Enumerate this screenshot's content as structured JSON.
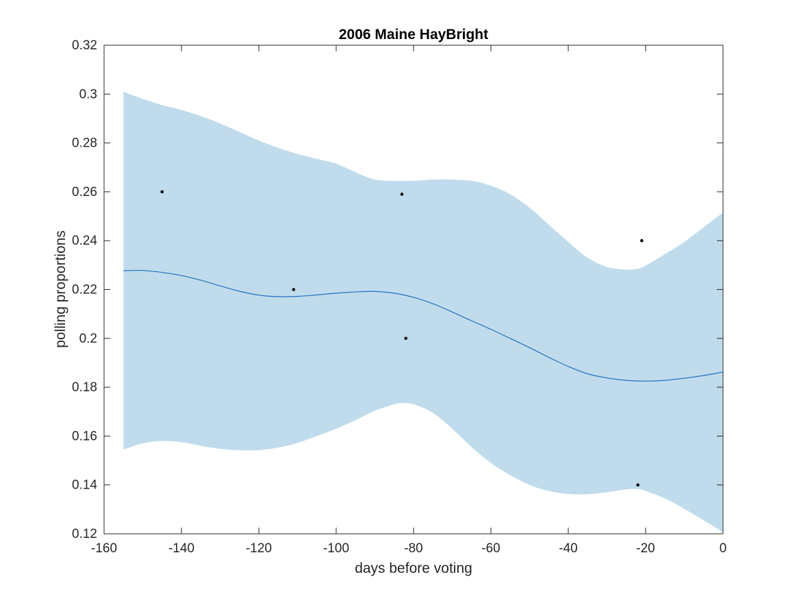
{
  "chart_data": {
    "type": "line",
    "title": "2006 Maine HayBright",
    "xlabel": "days before voting",
    "ylabel": "polling proportions",
    "xlim": [
      -160,
      0
    ],
    "ylim": [
      0.12,
      0.32
    ],
    "x_ticks": [
      -160,
      -140,
      -120,
      -100,
      -80,
      -60,
      -40,
      -20,
      0
    ],
    "x_tick_labels": [
      "-160",
      "-140",
      "-120",
      "-100",
      "-80",
      "-60",
      "-40",
      "-20",
      "0"
    ],
    "y_ticks": [
      0.12,
      0.14,
      0.16,
      0.18,
      0.2,
      0.22,
      0.24,
      0.26,
      0.28,
      0.3,
      0.32
    ],
    "y_tick_labels": [
      "0.12",
      "0.14",
      "0.16",
      "0.18",
      "0.2",
      "0.22",
      "0.24",
      "0.26",
      "0.28",
      "0.3",
      "0.32"
    ],
    "grid": false,
    "colors": {
      "band": "#c0dcec",
      "line": "#1f6fbd",
      "points": "#000000",
      "axes": "#262626"
    },
    "band": {
      "x": [
        -155,
        -150,
        -145,
        -140,
        -135,
        -130,
        -125,
        -120,
        -115,
        -110,
        -105,
        -100,
        -95,
        -90,
        -85,
        -83,
        -80,
        -75,
        -70,
        -65,
        -60,
        -55,
        -50,
        -45,
        -40,
        -35,
        -30,
        -25,
        -22,
        -20,
        -15,
        -10,
        -5,
        0
      ],
      "upper": [
        0.301,
        0.298,
        0.2955,
        0.2935,
        0.291,
        0.288,
        0.2845,
        0.281,
        0.278,
        0.2755,
        0.2735,
        0.2715,
        0.268,
        0.265,
        0.2645,
        0.2645,
        0.2645,
        0.265,
        0.265,
        0.2645,
        0.2625,
        0.259,
        0.2535,
        0.2465,
        0.2395,
        0.233,
        0.2292,
        0.2282,
        0.2285,
        0.2298,
        0.2345,
        0.2395,
        0.2455,
        0.2515
      ],
      "lower": [
        0.1545,
        0.157,
        0.158,
        0.1575,
        0.156,
        0.1548,
        0.1542,
        0.1542,
        0.1553,
        0.1572,
        0.16,
        0.163,
        0.1665,
        0.1703,
        0.173,
        0.1735,
        0.173,
        0.1695,
        0.163,
        0.1555,
        0.149,
        0.144,
        0.14,
        0.1375,
        0.1363,
        0.1362,
        0.137,
        0.1382,
        0.1383,
        0.1375,
        0.1345,
        0.1302,
        0.1255,
        0.1207
      ]
    },
    "series": [
      {
        "values_x": [
          -155,
          -150,
          -145,
          -140,
          -135,
          -130,
          -125,
          -120,
          -115,
          -110,
          -105,
          -100,
          -95,
          -90,
          -85,
          -80,
          -75,
          -70,
          -65,
          -60,
          -55,
          -50,
          -45,
          -40,
          -35,
          -30,
          -25,
          -20,
          -15,
          -10,
          -5,
          0
        ],
        "values_y": [
          0.2277,
          0.2278,
          0.227,
          0.2257,
          0.2238,
          0.2215,
          0.2193,
          0.2177,
          0.2171,
          0.2172,
          0.2178,
          0.2185,
          0.219,
          0.2192,
          0.2185,
          0.2168,
          0.2142,
          0.2108,
          0.2072,
          0.2037,
          0.2,
          0.1962,
          0.1922,
          0.1885,
          0.1855,
          0.1838,
          0.1828,
          0.1825,
          0.1828,
          0.1837,
          0.1848,
          0.1862
        ]
      }
    ],
    "points": {
      "x": [
        -145,
        -111,
        -83,
        -82,
        -21,
        -22
      ],
      "y": [
        0.26,
        0.22,
        0.259,
        0.2,
        0.24,
        0.14
      ]
    }
  }
}
